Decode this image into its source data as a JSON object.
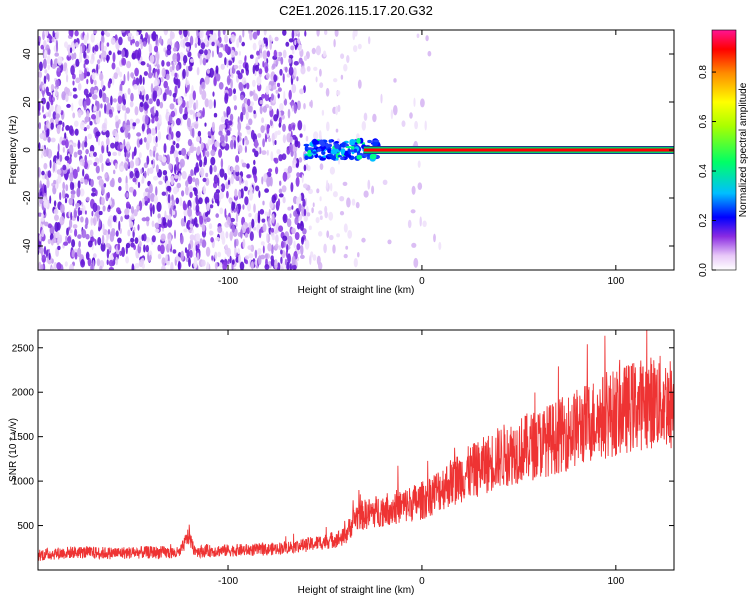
{
  "title": "C2E1.2026.115.17.20.G32",
  "chart_data": [
    {
      "type": "heatmap",
      "xlabel": "Height of straight line (km)",
      "ylabel": "Frequency (Hz)",
      "xlim": [
        -198,
        130
      ],
      "ylim": [
        -50,
        50
      ],
      "xticks": [
        -100,
        0,
        100
      ],
      "yticks": [
        -40,
        -20,
        0,
        20,
        40
      ],
      "colorbar": {
        "label": "Normalized spectral amplitude",
        "range": [
          0,
          0.97
        ],
        "ticks": [
          0.0,
          0.2,
          0.4,
          0.6,
          0.8
        ],
        "colors": [
          "#ffffff",
          "#e8c8f8",
          "#8a2be2",
          "#0000ff",
          "#00bfff",
          "#00ff00",
          "#ffff00",
          "#ff8c00",
          "#ff0000",
          "#ff1493"
        ]
      },
      "features": {
        "noise_region_x": [
          -198,
          -25
        ],
        "noise_dense_until_x": -60,
        "sparse_noise_x": [
          -60,
          10
        ],
        "signal_band_freq_hz": 0,
        "signal_band_start_x": -60,
        "signal_band_end_x": 130,
        "signal_band_color": "#ff0000",
        "signal_edge_color": "#00cc66"
      }
    },
    {
      "type": "line",
      "xlabel": "Height of straight line (km)",
      "ylabel": "SNR (10 * v/v)",
      "xlim": [
        -198,
        130
      ],
      "ylim": [
        0,
        2700
      ],
      "xticks": [
        -100,
        0,
        100
      ],
      "yticks": [
        500,
        1000,
        1500,
        2000,
        2500
      ],
      "series": [
        {
          "color": "#ee3333",
          "x": [
            -198,
            -180,
            -160,
            -140,
            -125,
            -120,
            -118,
            -115,
            -100,
            -80,
            -60,
            -50,
            -40,
            -34,
            -30,
            -20,
            -10,
            0,
            10,
            20,
            30,
            40,
            50,
            60,
            70,
            80,
            90,
            100,
            110,
            120,
            130
          ],
          "y": [
            170,
            200,
            190,
            200,
            190,
            400,
            240,
            210,
            220,
            230,
            280,
            320,
            370,
            600,
            620,
            680,
            720,
            780,
            920,
            1050,
            1150,
            1270,
            1350,
            1420,
            1500,
            1600,
            1700,
            1770,
            1850,
            1900,
            1870
          ]
        }
      ]
    }
  ]
}
